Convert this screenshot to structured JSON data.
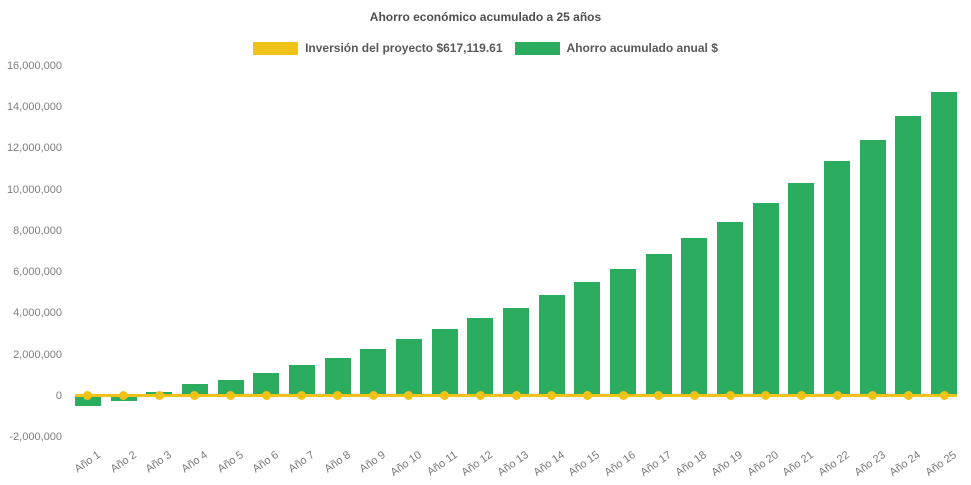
{
  "title": "Ahorro económico acumulado a 25 años",
  "legend": [
    {
      "id": "investment",
      "label": "Inversión del proyecto $617,119.61",
      "color": "#f1c319",
      "marker": "yellow-rect-swatch"
    },
    {
      "id": "savings",
      "label": "Ahorro acumulado anual $",
      "color": "#2bac5e",
      "marker": "green-rect-swatch"
    }
  ],
  "colors": {
    "background": "#ffffff",
    "bar_green": "#2bac5e",
    "line_yellow": "#f1c319",
    "title_text": "#4f4f51",
    "legend_text": "#58595b",
    "axis_text": "#7f7f7f"
  },
  "chart_data": {
    "type": "bar",
    "title": "Ahorro económico acumulado a 25 años",
    "categories": [
      "Año 1",
      "Año 2",
      "Año 3",
      "Año 4",
      "Año 5",
      "Año 6",
      "Año 7",
      "Año 8",
      "Año 9",
      "Año 10",
      "Año 11",
      "Año 12",
      "Año 13",
      "Año 14",
      "Año 15",
      "Año 16",
      "Año 17",
      "Año 18",
      "Año 19",
      "Año 20",
      "Año 21",
      "Año 22",
      "Año 23",
      "Año 24",
      "Año 25"
    ],
    "series": [
      {
        "name": "Ahorro acumulado anual $",
        "type": "bar",
        "color": "#2bac5e",
        "values": [
          -500000,
          -260000,
          160000,
          550000,
          770000,
          1120000,
          1490000,
          1850000,
          2250000,
          2770000,
          3240000,
          3770000,
          4260000,
          4890000,
          5530000,
          6140000,
          6880000,
          7640000,
          8450000,
          9340000,
          10310000,
          11390000,
          12410000,
          13580000,
          14760000
        ]
      },
      {
        "name": "Inversión del proyecto $617,119.61",
        "type": "line",
        "color": "#f1c319",
        "constant_value": 0,
        "marker": "circle"
      }
    ],
    "xlabel": "",
    "ylabel": "",
    "ylim": [
      -2000000,
      16000000
    ],
    "ytick_step": 2000000,
    "yticks": [
      "-2,000,000",
      "0",
      "2,000,000",
      "4,000,000",
      "6,000,000",
      "8,000,000",
      "10,000,000",
      "12,000,000",
      "14,000,000",
      "16,000,000"
    ],
    "grid": false,
    "legend_position": "top",
    "x_tick_rotation": -35
  }
}
